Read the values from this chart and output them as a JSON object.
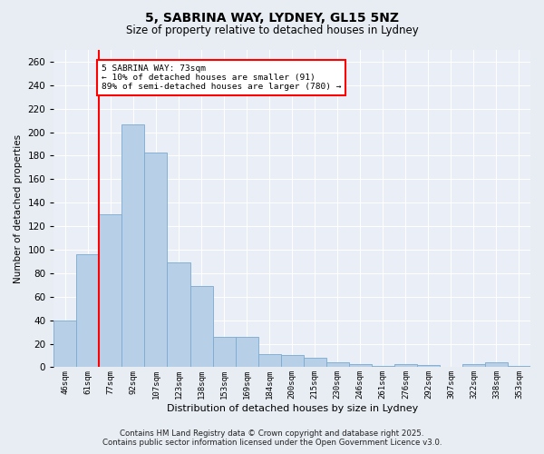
{
  "title": "5, SABRINA WAY, LYDNEY, GL15 5NZ",
  "subtitle": "Size of property relative to detached houses in Lydney",
  "xlabel": "Distribution of detached houses by size in Lydney",
  "ylabel": "Number of detached properties",
  "categories": [
    "46sqm",
    "61sqm",
    "77sqm",
    "92sqm",
    "107sqm",
    "123sqm",
    "138sqm",
    "153sqm",
    "169sqm",
    "184sqm",
    "200sqm",
    "215sqm",
    "230sqm",
    "246sqm",
    "261sqm",
    "276sqm",
    "292sqm",
    "307sqm",
    "322sqm",
    "338sqm",
    "353sqm"
  ],
  "values": [
    40,
    96,
    130,
    207,
    183,
    89,
    69,
    26,
    26,
    11,
    10,
    8,
    4,
    3,
    1,
    3,
    2,
    0,
    3,
    4,
    1
  ],
  "bar_color": "#b8cfe8",
  "bar_edge_color": "#7aaad0",
  "vline_x": 1.5,
  "vline_color": "red",
  "annotation_text": "5 SABRINA WAY: 73sqm\n← 10% of detached houses are smaller (91)\n89% of semi-detached houses are larger (780) →",
  "annotation_box_color": "white",
  "annotation_box_edge_color": "red",
  "footer_line1": "Contains HM Land Registry data © Crown copyright and database right 2025.",
  "footer_line2": "Contains public sector information licensed under the Open Government Licence v3.0.",
  "ylim": [
    0,
    270
  ],
  "yticks": [
    0,
    20,
    40,
    60,
    80,
    100,
    120,
    140,
    160,
    180,
    200,
    220,
    240,
    260
  ],
  "bg_color": "#e8edf4",
  "plot_bg_color": "#eaeff7",
  "title_fontsize": 10,
  "subtitle_fontsize": 8.5
}
